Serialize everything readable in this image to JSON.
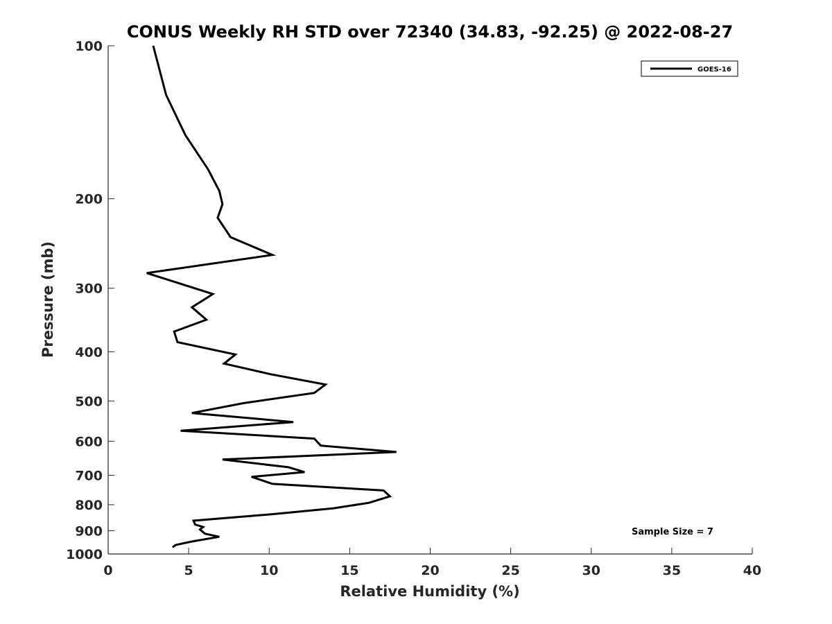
{
  "chart_data": {
    "type": "line",
    "title": "CONUS Weekly RH STD over 72340 (34.83, -92.25) @ 2022-08-27",
    "xlabel": "Relative Humidity (%)",
    "ylabel": "Pressure (mb)",
    "xlim": [
      0,
      40
    ],
    "ylim": [
      100,
      1000
    ],
    "y_scale": "log",
    "y_direction": "reversed",
    "x_ticks": [
      0,
      5,
      10,
      15,
      20,
      25,
      30,
      35,
      40
    ],
    "y_ticks": [
      100,
      200,
      300,
      400,
      500,
      600,
      700,
      800,
      900,
      1000
    ],
    "grid": false,
    "legend_position": "top-right",
    "series": [
      {
        "name": "GOES-16",
        "color": "#000000",
        "points": [
          [
            2.8,
            100
          ],
          [
            3.6,
            125
          ],
          [
            4.8,
            150
          ],
          [
            6.2,
            175
          ],
          [
            6.9,
            193
          ],
          [
            7.1,
            205
          ],
          [
            6.8,
            218
          ],
          [
            7.6,
            238
          ],
          [
            10.2,
            258
          ],
          [
            2.4,
            280
          ],
          [
            6.5,
            308
          ],
          [
            5.2,
            327
          ],
          [
            6.1,
            346
          ],
          [
            4.1,
            365
          ],
          [
            4.3,
            383
          ],
          [
            7.9,
            405
          ],
          [
            7.2,
            422
          ],
          [
            10.1,
            443
          ],
          [
            13.5,
            464
          ],
          [
            12.8,
            482
          ],
          [
            8.4,
            505
          ],
          [
            5.2,
            528
          ],
          [
            11.5,
            550
          ],
          [
            4.5,
            572
          ],
          [
            12.8,
            593
          ],
          [
            13.2,
            612
          ],
          [
            17.9,
            630
          ],
          [
            7.1,
            652
          ],
          [
            11.2,
            675
          ],
          [
            12.2,
            690
          ],
          [
            8.9,
            705
          ],
          [
            10.2,
            728
          ],
          [
            17.1,
            750
          ],
          [
            17.5,
            770
          ],
          [
            16.2,
            793
          ],
          [
            14.0,
            813
          ],
          [
            10.2,
            835
          ],
          [
            5.3,
            860
          ],
          [
            5.4,
            875
          ],
          [
            5.9,
            885
          ],
          [
            5.7,
            895
          ],
          [
            6.0,
            912
          ],
          [
            6.9,
            925
          ],
          [
            5.2,
            945
          ],
          [
            4.2,
            960
          ],
          [
            4.0,
            970
          ]
        ]
      }
    ],
    "annotations": [
      "Sample Size = 7"
    ]
  }
}
